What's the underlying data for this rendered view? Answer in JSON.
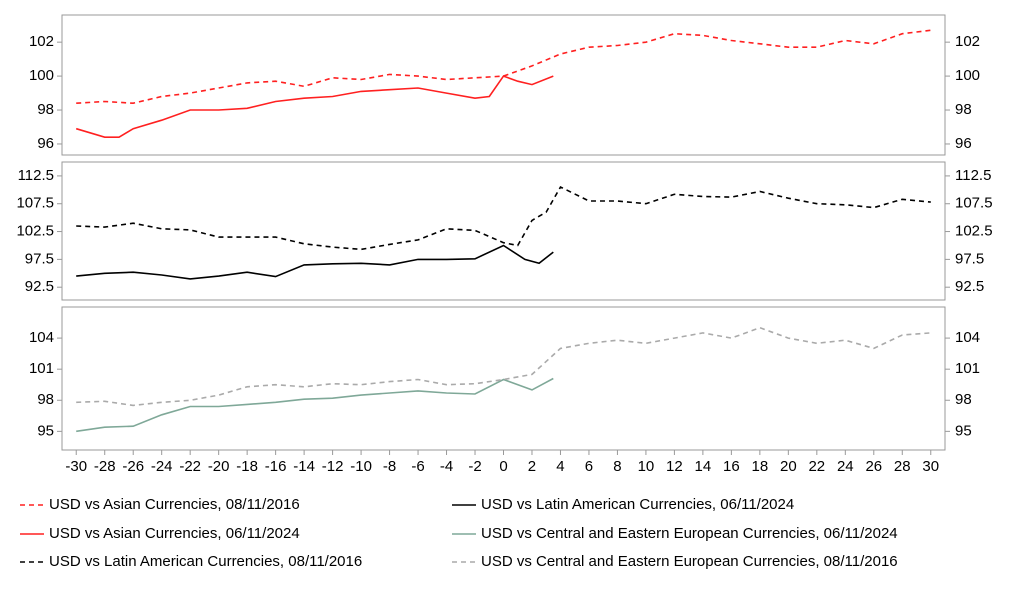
{
  "chart_data": [
    {
      "type": "line",
      "xlim": [
        -31,
        31
      ],
      "ylim": [
        95.35,
        103.6
      ],
      "yticks": [
        96,
        98,
        100,
        102
      ],
      "series": [
        {
          "name": "USD vs Asian Currencies, 08/11/2016",
          "color": "#ff2020",
          "dashed": true,
          "x": [
            -30,
            -28,
            -26,
            -24,
            -22,
            -20,
            -18,
            -16,
            -14,
            -12,
            -10,
            -8,
            -6,
            -4,
            -2,
            0,
            2,
            4,
            6,
            8,
            10,
            12,
            14,
            16,
            18,
            20,
            22,
            24,
            26,
            28,
            30
          ],
          "values": [
            98.4,
            98.5,
            98.4,
            98.8,
            99.0,
            99.3,
            99.6,
            99.7,
            99.4,
            99.9,
            99.8,
            100.1,
            100.0,
            99.8,
            99.9,
            100.0,
            100.6,
            101.3,
            101.7,
            101.8,
            102.0,
            102.5,
            102.4,
            102.1,
            101.9,
            101.7,
            101.7,
            102.1,
            101.9,
            102.5,
            102.7
          ]
        },
        {
          "name": "USD vs Asian Currencies, 06/11/2024",
          "color": "#ff2020",
          "dashed": false,
          "x": [
            -30,
            -28,
            -27,
            -26,
            -24,
            -22,
            -20,
            -18,
            -16,
            -14,
            -12,
            -10,
            -8,
            -6,
            -4,
            -2,
            -1,
            0,
            1,
            2,
            3.5
          ],
          "values": [
            96.9,
            96.4,
            96.4,
            96.9,
            97.4,
            98.0,
            98.0,
            98.1,
            98.5,
            98.7,
            98.8,
            99.1,
            99.2,
            99.3,
            99.0,
            98.7,
            98.8,
            100.0,
            99.7,
            99.5,
            100.0
          ]
        }
      ]
    },
    {
      "type": "line",
      "xlim": [
        -31,
        31
      ],
      "ylim": [
        90.2,
        115
      ],
      "yticks": [
        92.5,
        97.5,
        102.5,
        107.5,
        112.5
      ],
      "series": [
        {
          "name": "USD vs Latin American Currencies, 08/11/2016",
          "color": "#000000",
          "dashed": true,
          "x": [
            -30,
            -28,
            -26,
            -24,
            -22,
            -20,
            -18,
            -16,
            -14,
            -12,
            -10,
            -8,
            -6,
            -4,
            -2,
            0,
            1,
            2,
            3,
            4,
            6,
            8,
            10,
            12,
            14,
            16,
            18,
            20,
            22,
            24,
            26,
            28,
            30
          ],
          "values": [
            103.5,
            103.3,
            104.0,
            103.0,
            102.8,
            101.5,
            101.5,
            101.5,
            100.3,
            99.7,
            99.3,
            100.2,
            101.0,
            103.0,
            102.7,
            100.5,
            100.0,
            104.5,
            106.0,
            110.5,
            108.0,
            108.0,
            107.5,
            109.2,
            108.8,
            108.7,
            109.7,
            108.5,
            107.5,
            107.3,
            106.8,
            108.3,
            107.8
          ]
        },
        {
          "name": "USD vs Latin American Currencies, 06/11/2024",
          "color": "#000000",
          "dashed": false,
          "x": [
            -30,
            -28,
            -26,
            -24,
            -22,
            -20,
            -18,
            -16,
            -14,
            -12,
            -10,
            -8,
            -6,
            -4,
            -2,
            0,
            1.5,
            2.5,
            3.5
          ],
          "values": [
            94.5,
            95.0,
            95.2,
            94.7,
            94.0,
            94.5,
            95.2,
            94.4,
            96.5,
            96.7,
            96.8,
            96.5,
            97.5,
            97.5,
            97.6,
            100.0,
            97.5,
            96.8,
            98.8
          ]
        }
      ]
    },
    {
      "type": "line",
      "xlim": [
        -31,
        31
      ],
      "ylim": [
        93.2,
        107
      ],
      "yticks": [
        95,
        98,
        101,
        104
      ],
      "xticks": [
        -30,
        -28,
        -26,
        -24,
        -22,
        -20,
        -18,
        -16,
        -14,
        -12,
        -10,
        -8,
        -6,
        -4,
        -2,
        0,
        2,
        4,
        6,
        8,
        10,
        12,
        14,
        16,
        18,
        20,
        22,
        24,
        26,
        28,
        30
      ],
      "series": [
        {
          "name": "USD vs Central and Eastern European Currencies, 06/11/2024",
          "color": "#7fa898",
          "dashed": false,
          "x": [
            -30,
            -28,
            -26,
            -24,
            -22,
            -20,
            -18,
            -16,
            -14,
            -12,
            -10,
            -8,
            -6,
            -4,
            -2,
            0,
            2,
            3.5
          ],
          "values": [
            95.0,
            95.4,
            95.5,
            96.6,
            97.4,
            97.4,
            97.6,
            97.8,
            98.1,
            98.2,
            98.5,
            98.7,
            98.9,
            98.7,
            98.6,
            100.0,
            99.0,
            100.1
          ]
        },
        {
          "name": "USD vs Central and Eastern European Currencies, 08/11/2016",
          "color": "#aaaaaa",
          "dashed": true,
          "x": [
            -30,
            -28,
            -26,
            -24,
            -22,
            -20,
            -18,
            -16,
            -14,
            -12,
            -10,
            -8,
            -6,
            -4,
            -2,
            0,
            2,
            4,
            6,
            8,
            10,
            12,
            14,
            16,
            18,
            20,
            22,
            24,
            26,
            28,
            30
          ],
          "values": [
            97.8,
            97.9,
            97.5,
            97.8,
            98.0,
            98.5,
            99.3,
            99.5,
            99.3,
            99.6,
            99.5,
            99.8,
            100.0,
            99.5,
            99.6,
            100.0,
            100.5,
            103.0,
            103.5,
            103.8,
            103.5,
            104.0,
            104.5,
            104.0,
            105.0,
            104.0,
            103.5,
            103.8,
            103.0,
            104.3,
            104.5
          ]
        }
      ]
    }
  ]
}
